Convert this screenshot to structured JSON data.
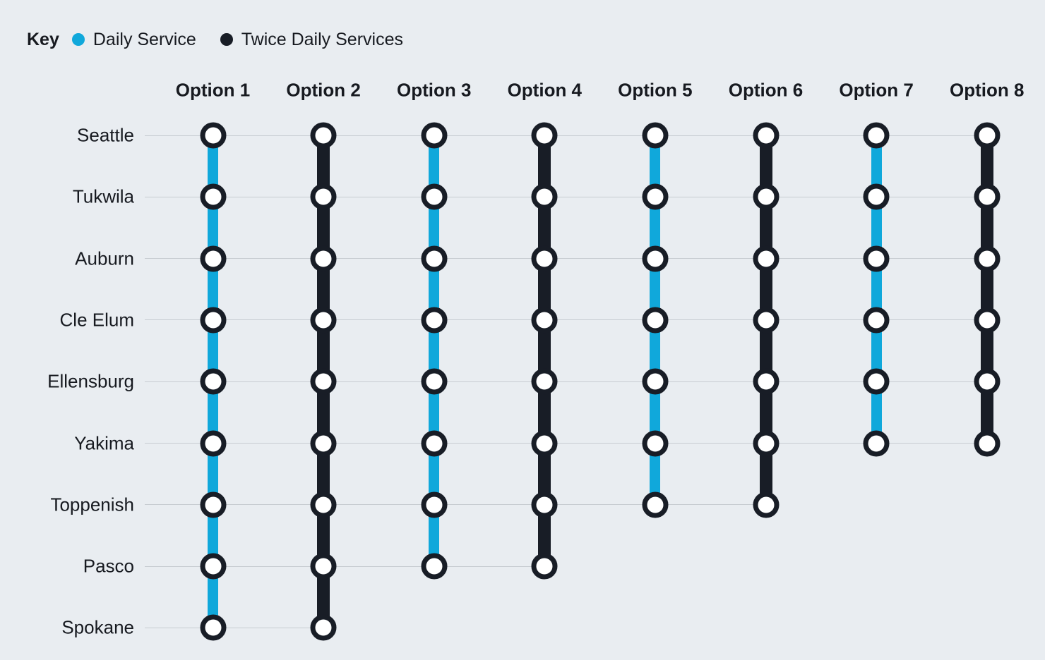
{
  "diagram": {
    "legend": {
      "title": "Key",
      "items": [
        {
          "id": "daily",
          "label": "Daily Service",
          "color": "#10a8db"
        },
        {
          "id": "twice-daily",
          "label": "Twice Daily Services",
          "color": "#181d26"
        }
      ]
    },
    "stations": [
      "Seattle",
      "Tukwila",
      "Auburn",
      "Cle Elum",
      "Ellensburg",
      "Yakima",
      "Toppenish",
      "Pasco",
      "Spokane"
    ],
    "options": [
      {
        "label": "Option 1",
        "service": "daily",
        "last_station": "Spokane",
        "stops": 9
      },
      {
        "label": "Option 2",
        "service": "twice-daily",
        "last_station": "Spokane",
        "stops": 9
      },
      {
        "label": "Option 3",
        "service": "daily",
        "last_station": "Pasco",
        "stops": 8
      },
      {
        "label": "Option 4",
        "service": "twice-daily",
        "last_station": "Pasco",
        "stops": 8
      },
      {
        "label": "Option 5",
        "service": "daily",
        "last_station": "Toppenish",
        "stops": 7
      },
      {
        "label": "Option 6",
        "service": "twice-daily",
        "last_station": "Toppenish",
        "stops": 7
      },
      {
        "label": "Option 7",
        "service": "daily",
        "last_station": "Yakima",
        "stops": 6
      },
      {
        "label": "Option 8",
        "service": "twice-daily",
        "last_station": "Yakima",
        "stops": 6
      }
    ],
    "colors": {
      "background": "#e9edf1",
      "daily": "#10a8db",
      "twice-daily": "#181d26",
      "gridline": "#c7ccd1",
      "text": "#171a20",
      "stop_fill": "#ffffff",
      "stop_ring": "#181d26"
    }
  }
}
